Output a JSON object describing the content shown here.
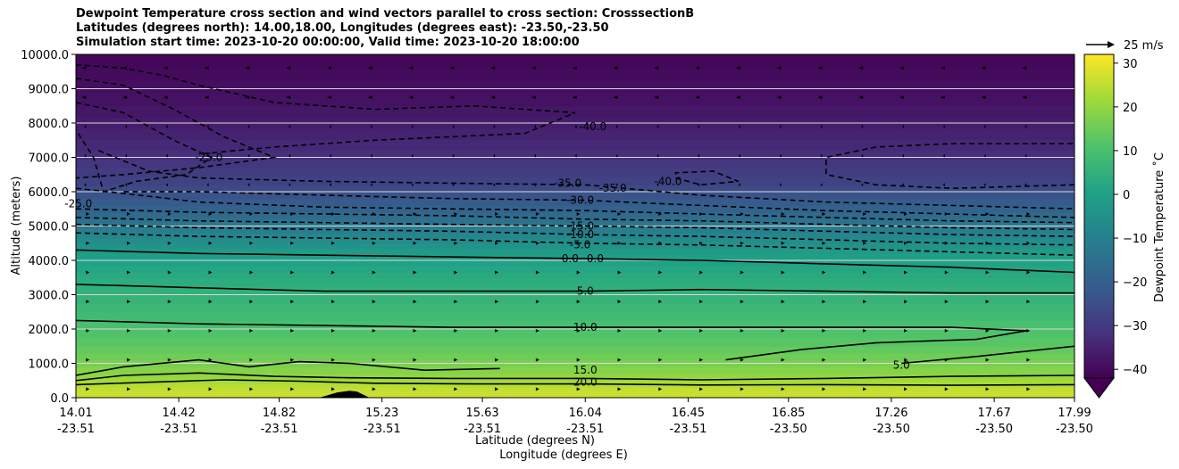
{
  "chart_data": {
    "type": "contour",
    "title_lines": [
      "Dewpoint Temperature cross section and wind vectors parallel to cross section: CrosssectionB",
      "Latitudes (degrees north): 14.00,18.00, Longitudes (degrees east): -23.50,-23.50",
      "Simulation start time: 2023-10-20 00:00:00, Valid time: 2023-10-20 18:00:00"
    ],
    "ylabel": "Altitude (meters)",
    "xlabel_lat": "Latitude (degrees N)",
    "xlabel_lon": "Longitude (degrees E)",
    "ylim": [
      0,
      10000
    ],
    "y_ticks": [
      "0.0",
      "1000.0",
      "2000.0",
      "3000.0",
      "4000.0",
      "5000.0",
      "6000.0",
      "7000.0",
      "8000.0",
      "9000.0",
      "10000.0"
    ],
    "x_ticks_lat": [
      "14.01",
      "14.42",
      "14.82",
      "15.23",
      "15.63",
      "16.04",
      "16.45",
      "16.85",
      "17.26",
      "17.67",
      "17.99"
    ],
    "x_ticks_lon": [
      "-23.51",
      "-23.51",
      "-23.51",
      "-23.51",
      "-23.51",
      "-23.51",
      "-23.51",
      "-23.50",
      "-23.50",
      "-23.50",
      "-23.50"
    ],
    "x_tick_positions": [
      14.01,
      14.42,
      14.82,
      15.23,
      15.63,
      16.04,
      16.45,
      16.85,
      17.26,
      17.67,
      17.99
    ],
    "xlim": [
      14.01,
      17.99
    ],
    "colorbar": {
      "label": "Dewpoint Temperature ˚C",
      "ticks": [
        "30",
        "20",
        "10",
        "0",
        "−10",
        "−20",
        "−30",
        "−40"
      ],
      "tick_values": [
        30,
        20,
        10,
        0,
        -10,
        -20,
        -30,
        -40
      ],
      "range": [
        -42,
        32
      ],
      "extend": "min",
      "colormap": "viridis"
    },
    "quiver_key": "25 m/s",
    "field_layers": [
      {
        "alt": 0,
        "t": 27
      },
      {
        "alt": 300,
        "t": 25
      },
      {
        "alt": 700,
        "t": 19
      },
      {
        "alt": 1500,
        "t": 13
      },
      {
        "alt": 2500,
        "t": 8
      },
      {
        "alt": 3500,
        "t": 3
      },
      {
        "alt": 4200,
        "t": -1
      },
      {
        "alt": 4800,
        "t": -9
      },
      {
        "alt": 5400,
        "t": -18
      },
      {
        "alt": 6200,
        "t": -27
      },
      {
        "alt": 7200,
        "t": -33
      },
      {
        "alt": 8500,
        "t": -38
      },
      {
        "alt": 10000,
        "t": -41
      }
    ],
    "contour_labels": [
      {
        "text": "-40.0",
        "lat": 16.07,
        "alt": 7900
      },
      {
        "text": "-35.0",
        "lat": 15.97,
        "alt": 6250
      },
      {
        "text": "-35.0",
        "lat": 16.15,
        "alt": 6100
      },
      {
        "text": "-30.0",
        "lat": 16.02,
        "alt": 5750
      },
      {
        "text": "-15.0",
        "lat": 16.02,
        "alt": 5000
      },
      {
        "text": "-10.0",
        "lat": 16.02,
        "alt": 4750
      },
      {
        "text": "-5.0",
        "lat": 16.02,
        "alt": 4450
      },
      {
        "text": "0.0",
        "lat": 15.98,
        "alt": 4050
      },
      {
        "text": "0.0",
        "lat": 16.08,
        "alt": 4050
      },
      {
        "text": "5.0",
        "lat": 16.04,
        "alt": 3100
      },
      {
        "text": "10.0",
        "lat": 16.04,
        "alt": 2050
      },
      {
        "text": "15.0",
        "lat": 16.04,
        "alt": 800
      },
      {
        "text": "20.0",
        "lat": 16.04,
        "alt": 450
      },
      {
        "text": "-25.0",
        "lat": 14.54,
        "alt": 7000
      },
      {
        "text": "-25.0",
        "lat": 14.02,
        "alt": 5650
      },
      {
        "text": "-40.0",
        "lat": 16.37,
        "alt": 6300
      },
      {
        "text": "5.0",
        "lat": 17.3,
        "alt": 950
      }
    ],
    "contours": [
      {
        "level": 20,
        "style": "solid",
        "pts": [
          [
            14.01,
            380
          ],
          [
            14.3,
            450
          ],
          [
            14.6,
            520
          ],
          [
            14.9,
            480
          ],
          [
            15.2,
            420
          ],
          [
            15.6,
            400
          ],
          [
            16.04,
            400
          ],
          [
            16.5,
            370
          ],
          [
            17.0,
            380
          ],
          [
            17.5,
            360
          ],
          [
            17.99,
            380
          ]
        ]
      },
      {
        "level": 15,
        "style": "solid",
        "pts": [
          [
            14.01,
            500
          ],
          [
            14.2,
            650
          ],
          [
            14.5,
            720
          ],
          [
            14.8,
            620
          ],
          [
            15.1,
            580
          ],
          [
            15.5,
            560
          ],
          [
            16.04,
            560
          ],
          [
            16.5,
            520
          ],
          [
            17.0,
            560
          ],
          [
            17.5,
            620
          ],
          [
            17.99,
            650
          ]
        ]
      },
      {
        "level": 15,
        "style": "solid",
        "pts": [
          [
            14.01,
            650
          ],
          [
            14.2,
            900
          ],
          [
            14.5,
            1100
          ],
          [
            14.7,
            900
          ],
          [
            14.9,
            1050
          ],
          [
            15.1,
            1000
          ],
          [
            15.4,
            800
          ],
          [
            15.7,
            850
          ]
        ]
      },
      {
        "level": 10,
        "style": "solid",
        "pts": [
          [
            14.01,
            2250
          ],
          [
            14.5,
            2150
          ],
          [
            15.0,
            2100
          ],
          [
            15.5,
            2050
          ],
          [
            16.04,
            2050
          ],
          [
            16.5,
            2050
          ],
          [
            17.0,
            2050
          ],
          [
            17.5,
            2050
          ],
          [
            17.8,
            1950
          ],
          [
            17.6,
            1700
          ],
          [
            17.2,
            1600
          ],
          [
            16.9,
            1400
          ],
          [
            16.6,
            1100
          ]
        ]
      },
      {
        "level": 10,
        "style": "solid",
        "pts": [
          [
            17.3,
            1000
          ],
          [
            17.6,
            1200
          ],
          [
            17.99,
            1500
          ]
        ]
      },
      {
        "level": 5,
        "style": "solid",
        "pts": [
          [
            14.01,
            3300
          ],
          [
            14.5,
            3200
          ],
          [
            15.0,
            3100
          ],
          [
            15.5,
            3100
          ],
          [
            16.04,
            3100
          ],
          [
            16.5,
            3150
          ],
          [
            17.0,
            3100
          ],
          [
            17.5,
            3050
          ],
          [
            17.99,
            3050
          ]
        ]
      },
      {
        "level": 0,
        "style": "solid",
        "pts": [
          [
            14.01,
            4300
          ],
          [
            14.5,
            4200
          ],
          [
            15.0,
            4150
          ],
          [
            15.5,
            4100
          ],
          [
            16.04,
            4050
          ],
          [
            16.5,
            4000
          ],
          [
            17.0,
            3900
          ],
          [
            17.5,
            3800
          ],
          [
            17.99,
            3650
          ]
        ]
      },
      {
        "level": -5,
        "style": "dashed",
        "pts": [
          [
            14.01,
            4800
          ],
          [
            14.5,
            4700
          ],
          [
            15.0,
            4650
          ],
          [
            15.5,
            4600
          ],
          [
            16.04,
            4500
          ],
          [
            16.5,
            4450
          ],
          [
            17.0,
            4350
          ],
          [
            17.5,
            4250
          ],
          [
            17.99,
            4150
          ]
        ]
      },
      {
        "level": -10,
        "style": "dashed",
        "pts": [
          [
            14.01,
            5050
          ],
          [
            14.5,
            4950
          ],
          [
            15.0,
            4900
          ],
          [
            15.5,
            4850
          ],
          [
            16.04,
            4750
          ],
          [
            16.5,
            4700
          ],
          [
            17.0,
            4600
          ],
          [
            17.5,
            4500
          ],
          [
            17.99,
            4450
          ]
        ]
      },
      {
        "level": -15,
        "style": "dashed",
        "pts": [
          [
            14.01,
            5250
          ],
          [
            14.5,
            5150
          ],
          [
            15.0,
            5100
          ],
          [
            15.5,
            5050
          ],
          [
            16.04,
            5000
          ],
          [
            16.5,
            4950
          ],
          [
            17.0,
            4850
          ],
          [
            17.5,
            4750
          ],
          [
            17.99,
            4700
          ]
        ]
      },
      {
        "level": -20,
        "style": "dashed",
        "pts": [
          [
            14.01,
            5500
          ],
          [
            14.5,
            5400
          ],
          [
            15.0,
            5350
          ],
          [
            15.5,
            5300
          ],
          [
            16.04,
            5200
          ],
          [
            16.5,
            5150
          ],
          [
            17.0,
            5050
          ],
          [
            17.5,
            4950
          ],
          [
            17.99,
            4900
          ]
        ]
      },
      {
        "level": -25,
        "style": "dashed",
        "pts": [
          [
            14.01,
            6100
          ],
          [
            14.2,
            5950
          ],
          [
            14.5,
            5700
          ],
          [
            15.0,
            5550
          ],
          [
            15.5,
            5500
          ],
          [
            16.04,
            5450
          ],
          [
            16.5,
            5350
          ],
          [
            17.0,
            5250
          ],
          [
            17.5,
            5150
          ],
          [
            17.99,
            5100
          ]
        ]
      },
      {
        "level": -30,
        "style": "dashed",
        "pts": [
          [
            14.2,
            6000
          ],
          [
            14.5,
            6000
          ],
          [
            15.0,
            5900
          ],
          [
            15.5,
            5800
          ],
          [
            16.04,
            5750
          ],
          [
            16.5,
            5600
          ],
          [
            17.0,
            5450
          ],
          [
            17.5,
            5350
          ],
          [
            17.99,
            5250
          ]
        ]
      },
      {
        "level": -35,
        "style": "dashed",
        "pts": [
          [
            14.1,
            7200
          ],
          [
            14.3,
            6600
          ],
          [
            14.5,
            6400
          ],
          [
            15.0,
            6300
          ],
          [
            15.5,
            6250
          ],
          [
            16.04,
            6200
          ],
          [
            16.5,
            5900
          ],
          [
            17.0,
            5700
          ],
          [
            17.5,
            5600
          ],
          [
            17.99,
            5500
          ]
        ]
      },
      {
        "level": -25,
        "style": "dashed",
        "pts": [
          [
            14.01,
            8600
          ],
          [
            14.2,
            8300
          ],
          [
            14.4,
            7500
          ],
          [
            14.55,
            7000
          ],
          [
            14.45,
            6500
          ],
          [
            14.25,
            6300
          ],
          [
            14.12,
            6000
          ],
          [
            14.08,
            7000
          ],
          [
            14.01,
            7800
          ]
        ]
      },
      {
        "level": -30,
        "style": "dashed",
        "pts": [
          [
            14.01,
            9300
          ],
          [
            14.2,
            9100
          ],
          [
            14.4,
            8400
          ],
          [
            14.6,
            7600
          ],
          [
            14.8,
            7000
          ],
          [
            14.5,
            6700
          ],
          [
            14.2,
            6500
          ],
          [
            14.01,
            6400
          ]
        ]
      },
      {
        "level": -35,
        "style": "dashed",
        "pts": [
          [
            14.01,
            9700
          ],
          [
            14.2,
            9600
          ],
          [
            14.35,
            9400
          ],
          [
            14.5,
            9100
          ],
          [
            14.8,
            8600
          ],
          [
            15.2,
            8400
          ],
          [
            15.6,
            8500
          ],
          [
            16.0,
            8300
          ],
          [
            15.8,
            7700
          ],
          [
            15.2,
            7500
          ],
          [
            14.8,
            7300
          ],
          [
            14.5,
            7100
          ]
        ]
      },
      {
        "level": -40,
        "style": "dashed",
        "pts": [
          [
            17.99,
            6200
          ],
          [
            17.5,
            6100
          ],
          [
            17.2,
            6200
          ],
          [
            17.0,
            6500
          ],
          [
            17.0,
            7000
          ],
          [
            17.2,
            7300
          ],
          [
            17.5,
            7400
          ],
          [
            17.99,
            7400
          ]
        ]
      },
      {
        "level": -40,
        "style": "dashed",
        "pts": [
          [
            16.4,
            6400
          ],
          [
            16.5,
            6200
          ],
          [
            16.65,
            6300
          ],
          [
            16.55,
            6600
          ],
          [
            16.4,
            6550
          ],
          [
            16.4,
            6400
          ]
        ]
      }
    ],
    "terrain": [
      [
        14.98,
        0
      ],
      [
        15.05,
        150
      ],
      [
        15.1,
        200
      ],
      [
        15.13,
        180
      ],
      [
        15.18,
        0
      ]
    ]
  }
}
